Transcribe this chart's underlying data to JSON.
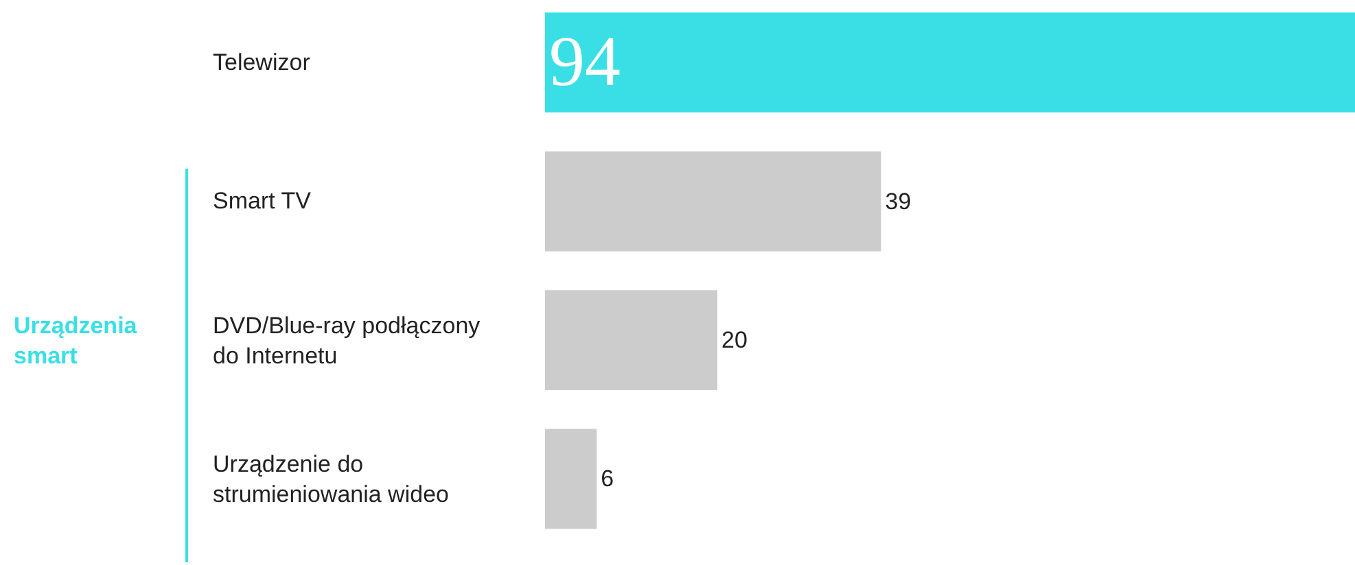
{
  "chart_data": {
    "type": "bar",
    "orientation": "horizontal",
    "categories": [
      "Telewizor",
      "Smart TV",
      "DVD/Blue-ray podłączony do Internetu",
      "Urządzenie do strumieniowania wideo"
    ],
    "values": [
      94,
      39,
      20,
      6
    ],
    "colors": [
      "#3adfe6",
      "#cccccc",
      "#cccccc",
      "#cccccc"
    ],
    "xlim": [
      0,
      94
    ],
    "data_labels": true,
    "annotations": [
      "Urządzenia smart"
    ]
  }
}
